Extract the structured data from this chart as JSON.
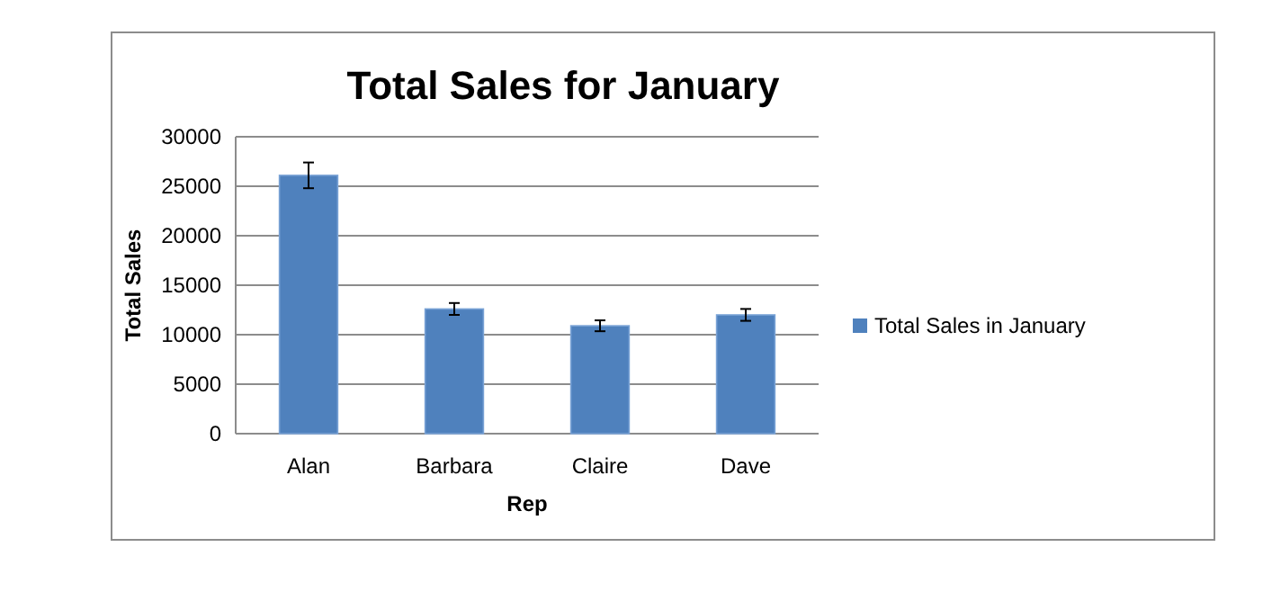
{
  "chart_data": {
    "type": "bar",
    "title": "Total Sales for January",
    "xlabel": "Rep",
    "ylabel": "Total Sales",
    "categories": [
      "Alan",
      "Barbara",
      "Claire",
      "Dave"
    ],
    "series": [
      {
        "name": "Total Sales in January",
        "color": "#4f81bd",
        "values": [
          26100,
          12600,
          10900,
          12000
        ],
        "errors": [
          1300,
          600,
          550,
          600
        ]
      }
    ],
    "ylim": [
      0,
      30000
    ],
    "yticks": [
      0,
      5000,
      10000,
      15000,
      20000,
      25000,
      30000
    ],
    "grid": "y",
    "legend": "right"
  }
}
